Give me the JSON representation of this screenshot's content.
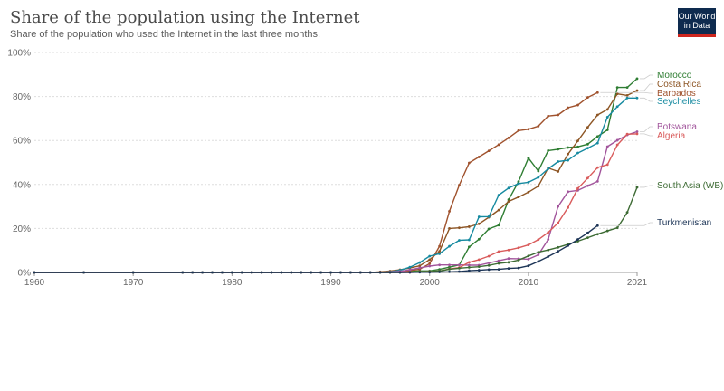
{
  "header": {
    "title": "Share of the population using the Internet",
    "subtitle": "Share of the population who used the Internet in the last three months.",
    "logo_line1": "Our World",
    "logo_line2": "in Data"
  },
  "chart_data": {
    "type": "line",
    "title": "Share of the population using the Internet",
    "subtitle": "Share of the population who used the Internet in the last three months.",
    "xlabel": "",
    "ylabel": "",
    "xlim": [
      1960,
      2021
    ],
    "ylim": [
      0,
      100
    ],
    "x_ticks": [
      "1960",
      "1970",
      "1980",
      "1990",
      "2000",
      "2010",
      "2021"
    ],
    "y_ticks": [
      "0%",
      "20%",
      "40%",
      "60%",
      "80%",
      "100%"
    ],
    "grid": "horizontal dotted",
    "legend": "right, labels at line ends",
    "series": [
      {
        "name": "Morocco",
        "color": "#2e7d32",
        "x": [
          1960,
          1965,
          1970,
          1975,
          1976,
          1977,
          1978,
          1979,
          1980,
          1981,
          1982,
          1983,
          1984,
          1985,
          1986,
          1987,
          1988,
          1989,
          1990,
          1991,
          1992,
          1993,
          1994,
          1995,
          1996,
          1997,
          1998,
          1999,
          2000,
          2001,
          2002,
          2003,
          2004,
          2005,
          2006,
          2007,
          2008,
          2009,
          2010,
          2011,
          2012,
          2013,
          2014,
          2015,
          2016,
          2017,
          2018,
          2019,
          2020,
          2021
        ],
        "y": [
          0,
          0,
          0,
          0,
          0,
          0,
          0,
          0,
          0,
          0,
          0,
          0,
          0,
          0,
          0,
          0,
          0,
          0,
          0,
          0,
          0,
          0,
          0,
          0.03,
          0.05,
          0.2,
          0.4,
          0.7,
          0.7,
          1.4,
          2.4,
          3.4,
          11.6,
          15.1,
          19.8,
          21.5,
          33.1,
          41.3,
          52,
          46.1,
          55.4,
          56,
          56.8,
          57.1,
          58.3,
          61.8,
          64.8,
          84.1,
          84.1,
          88.1
        ]
      },
      {
        "name": "Costa Rica",
        "color": "#8d5524",
        "x": [
          1960,
          1965,
          1970,
          1975,
          1976,
          1977,
          1978,
          1979,
          1980,
          1981,
          1982,
          1983,
          1984,
          1985,
          1986,
          1987,
          1988,
          1989,
          1990,
          1991,
          1992,
          1993,
          1994,
          1995,
          1996,
          1997,
          1998,
          1999,
          2000,
          2001,
          2002,
          2003,
          2004,
          2005,
          2006,
          2007,
          2008,
          2009,
          2010,
          2011,
          2012,
          2013,
          2014,
          2015,
          2016,
          2017,
          2018,
          2019,
          2020,
          2021
        ],
        "y": [
          0,
          0,
          0,
          0,
          0,
          0,
          0,
          0,
          0,
          0,
          0,
          0,
          0,
          0,
          0,
          0,
          0,
          0,
          0,
          0,
          0,
          0,
          0,
          0.3,
          0.6,
          1.2,
          2.0,
          3.0,
          5.8,
          9.6,
          20,
          20.3,
          20.8,
          22.1,
          25.1,
          28.4,
          32.3,
          34.3,
          36.5,
          39.2,
          47.5,
          45.9,
          53.8,
          59.8,
          66,
          71.6,
          74.1,
          81.2,
          80.5,
          82.7
        ]
      },
      {
        "name": "Barbados",
        "color": "#a0522d",
        "x": [
          1960,
          1965,
          1970,
          1975,
          1976,
          1977,
          1978,
          1979,
          1980,
          1981,
          1982,
          1983,
          1984,
          1985,
          1986,
          1987,
          1988,
          1989,
          1990,
          1991,
          1992,
          1993,
          1994,
          1995,
          1996,
          1997,
          1998,
          1999,
          2000,
          2001,
          2002,
          2003,
          2004,
          2005,
          2006,
          2007,
          2008,
          2009,
          2010,
          2011,
          2012,
          2013,
          2014,
          2015,
          2016,
          2017
        ],
        "y": [
          0,
          0,
          0,
          0,
          0,
          0,
          0,
          0,
          0,
          0,
          0,
          0,
          0,
          0,
          0,
          0,
          0,
          0,
          0,
          0,
          0,
          0,
          0,
          0,
          0.1,
          0.4,
          0.8,
          1.5,
          4.0,
          11.9,
          27.8,
          39.7,
          49.8,
          52.5,
          55.3,
          58.1,
          61.2,
          64.5,
          65.1,
          66.5,
          71.1,
          71.6,
          74.9,
          76.1,
          79.6,
          81.8
        ]
      },
      {
        "name": "Seychelles",
        "color": "#168aa0",
        "x": [
          1960,
          1965,
          1970,
          1975,
          1976,
          1977,
          1978,
          1979,
          1980,
          1981,
          1982,
          1983,
          1984,
          1985,
          1986,
          1987,
          1988,
          1989,
          1990,
          1991,
          1992,
          1993,
          1994,
          1995,
          1996,
          1997,
          1998,
          1999,
          2000,
          2001,
          2002,
          2003,
          2004,
          2005,
          2006,
          2007,
          2008,
          2009,
          2010,
          2011,
          2012,
          2013,
          2014,
          2015,
          2016,
          2017,
          2018,
          2019,
          2020,
          2021
        ],
        "y": [
          0,
          0,
          0,
          0,
          0,
          0,
          0,
          0,
          0,
          0,
          0,
          0,
          0,
          0,
          0,
          0,
          0,
          0,
          0,
          0,
          0,
          0,
          0,
          0.1,
          0.3,
          1.0,
          2.4,
          4.5,
          7.4,
          8.5,
          11.9,
          14.6,
          14.8,
          25.3,
          25.4,
          35.2,
          38.4,
          40.4,
          41,
          43.2,
          47.1,
          50.4,
          51,
          54.3,
          56.5,
          58.8,
          70.6,
          75.4,
          79.3,
          79.3
        ]
      },
      {
        "name": "Botswana",
        "color": "#a2559c",
        "x": [
          1960,
          1965,
          1970,
          1975,
          1976,
          1977,
          1978,
          1979,
          1980,
          1981,
          1982,
          1983,
          1984,
          1985,
          1986,
          1987,
          1988,
          1989,
          1990,
          1991,
          1992,
          1993,
          1994,
          1995,
          1996,
          1997,
          1998,
          1999,
          2000,
          2001,
          2002,
          2003,
          2004,
          2005,
          2006,
          2007,
          2008,
          2009,
          2010,
          2011,
          2012,
          2013,
          2014,
          2015,
          2016,
          2017,
          2018,
          2019,
          2020,
          2021
        ],
        "y": [
          0,
          0,
          0,
          0,
          0,
          0,
          0,
          0,
          0,
          0,
          0,
          0,
          0,
          0,
          0,
          0,
          0,
          0,
          0,
          0,
          0,
          0,
          0,
          0.1,
          0.2,
          0.5,
          1.2,
          2.1,
          2.9,
          3.4,
          3.4,
          3.4,
          3.3,
          3.3,
          4.3,
          5.3,
          6.3,
          6.2,
          6.0,
          8.0,
          15.0,
          30.0,
          36.7,
          37.3,
          39.4,
          41.4,
          57.2,
          60.1,
          62.5,
          64
        ]
      },
      {
        "name": "Algeria",
        "color": "#d95b5b",
        "x": [
          1960,
          1965,
          1970,
          1975,
          1976,
          1977,
          1978,
          1979,
          1980,
          1981,
          1982,
          1983,
          1984,
          1985,
          1986,
          1987,
          1988,
          1989,
          1990,
          1991,
          1992,
          1993,
          1994,
          1995,
          1996,
          1997,
          1998,
          1999,
          2000,
          2001,
          2002,
          2003,
          2004,
          2005,
          2006,
          2007,
          2008,
          2009,
          2010,
          2011,
          2012,
          2013,
          2014,
          2015,
          2016,
          2017,
          2018,
          2019,
          2020,
          2021
        ],
        "y": [
          0,
          0,
          0,
          0,
          0,
          0,
          0,
          0,
          0,
          0,
          0,
          0,
          0,
          0,
          0,
          0,
          0,
          0,
          0,
          0,
          0,
          0,
          0,
          0,
          0,
          0.01,
          0.02,
          0.2,
          0.5,
          0.6,
          1.6,
          2.2,
          4.6,
          5.8,
          7.4,
          9.5,
          10.2,
          11.2,
          12.5,
          14.9,
          18.2,
          22.5,
          29.5,
          38.2,
          42.9,
          47.7,
          49,
          58,
          62.9,
          63
        ]
      },
      {
        "name": "South Asia (WB)",
        "color": "#3d6b34",
        "x": [
          1960,
          1965,
          1970,
          1975,
          1976,
          1977,
          1978,
          1979,
          1980,
          1981,
          1982,
          1983,
          1984,
          1985,
          1986,
          1987,
          1988,
          1989,
          1990,
          1991,
          1992,
          1993,
          1994,
          1995,
          1996,
          1997,
          1998,
          1999,
          2000,
          2001,
          2002,
          2003,
          2004,
          2005,
          2006,
          2007,
          2008,
          2009,
          2010,
          2011,
          2012,
          2013,
          2014,
          2015,
          2016,
          2017,
          2018,
          2019,
          2020,
          2021
        ],
        "y": [
          0,
          0,
          0,
          0,
          0,
          0,
          0,
          0,
          0,
          0,
          0,
          0,
          0,
          0,
          0,
          0,
          0,
          0,
          0,
          0,
          0,
          0,
          0,
          0.01,
          0.02,
          0.05,
          0.1,
          0.2,
          0.4,
          0.6,
          1.5,
          1.9,
          2.3,
          2.6,
          3.2,
          4.1,
          4.6,
          5.6,
          7.5,
          9.2,
          10.2,
          11.4,
          12.8,
          14.2,
          15.8,
          17.4,
          18.9,
          20.3,
          27.3,
          38.7
        ]
      },
      {
        "name": "Turkmenistan",
        "color": "#1d3557",
        "x": [
          1960,
          1965,
          1970,
          1975,
          1976,
          1977,
          1978,
          1979,
          1980,
          1981,
          1982,
          1983,
          1984,
          1985,
          1986,
          1987,
          1988,
          1989,
          1990,
          1991,
          1992,
          1993,
          1994,
          1995,
          1996,
          1997,
          1998,
          1999,
          2000,
          2001,
          2002,
          2003,
          2004,
          2005,
          2006,
          2007,
          2008,
          2009,
          2010,
          2011,
          2012,
          2013,
          2014,
          2015,
          2016,
          2017
        ],
        "y": [
          0,
          0,
          0,
          0,
          0,
          0,
          0,
          0,
          0,
          0,
          0,
          0,
          0,
          0,
          0,
          0,
          0,
          0,
          0,
          0,
          0,
          0,
          0,
          0,
          0,
          0.01,
          0.03,
          0.1,
          0.1,
          0.2,
          0.3,
          0.4,
          0.8,
          1.0,
          1.3,
          1.4,
          1.8,
          2.0,
          3.0,
          5.0,
          7.2,
          9.6,
          12.2,
          15,
          18,
          21.3
        ]
      }
    ]
  }
}
